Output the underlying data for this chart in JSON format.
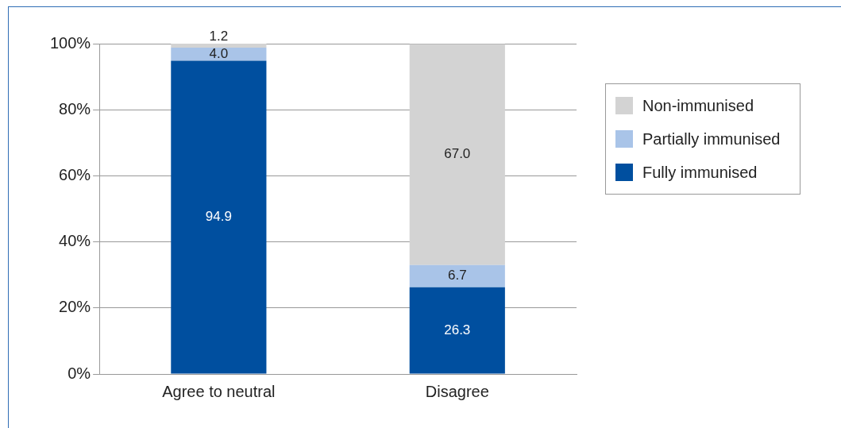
{
  "chart_data": {
    "type": "bar",
    "stacked": true,
    "categories": [
      "Agree to neutral",
      "Disagree"
    ],
    "series": [
      {
        "name": "Fully immunised",
        "color": "#004f9f",
        "values": [
          94.9,
          26.3
        ],
        "value_labels": [
          "94.9",
          "26.3"
        ]
      },
      {
        "name": "Partially immunised",
        "color": "#a9c4e8",
        "values": [
          4.0,
          6.7
        ],
        "value_labels": [
          "4.0",
          "6.7"
        ]
      },
      {
        "name": "Non-immunised",
        "color": "#d3d3d3",
        "values": [
          1.2,
          67.0
        ],
        "value_labels": [
          "1.2",
          "67.0"
        ]
      }
    ],
    "ylim": [
      0,
      100.1
    ],
    "yticks": [
      {
        "value": 0,
        "label": "0%"
      },
      {
        "value": 20,
        "label": "20%"
      },
      {
        "value": 40,
        "label": "40%"
      },
      {
        "value": 60,
        "label": "60%"
      },
      {
        "value": 80,
        "label": "80%"
      },
      {
        "value": 100,
        "label": "100%"
      }
    ],
    "grid": "y",
    "legend": "right"
  }
}
